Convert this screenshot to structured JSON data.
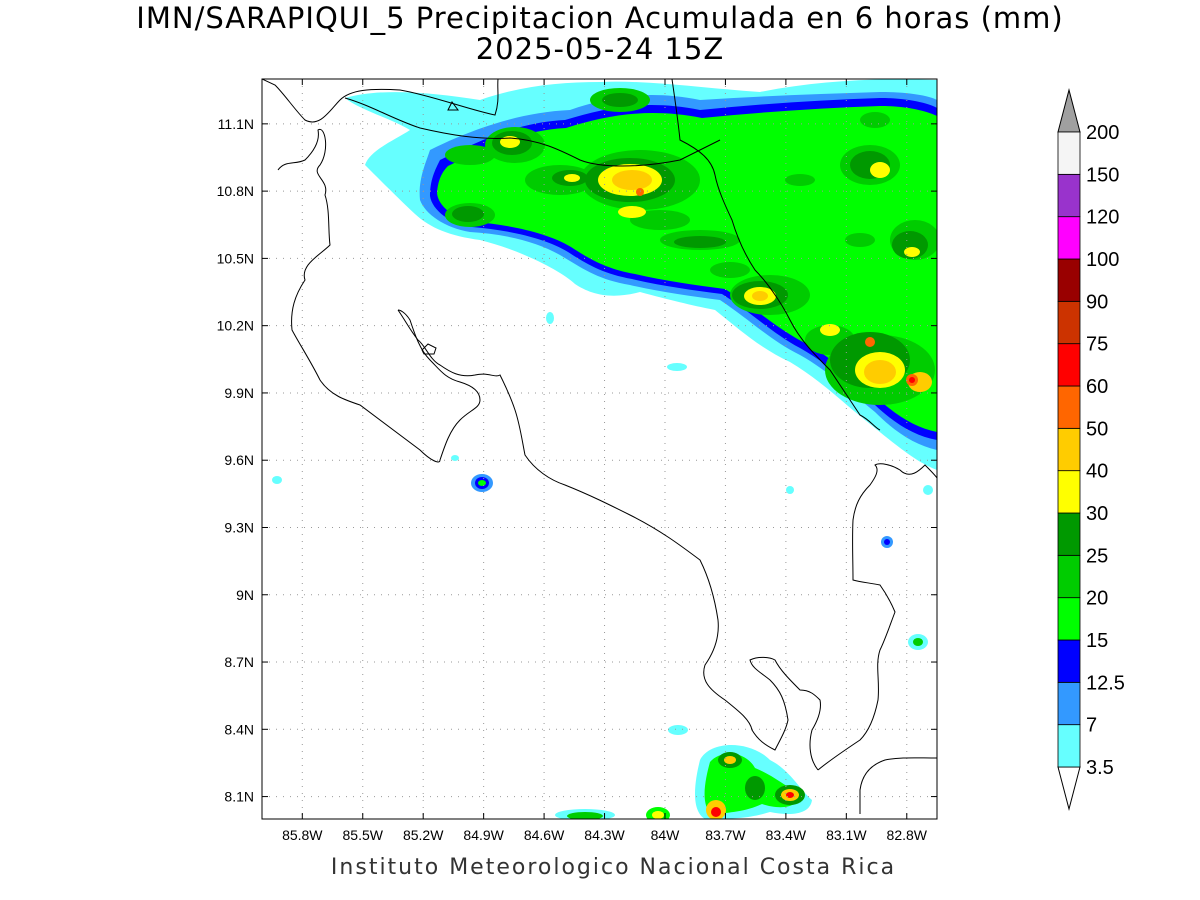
{
  "title_line1": "IMN/SARAPIQUI_5 Precipitacion Acumulada en 6 horas (mm)",
  "title_line2": "2025-05-24 15Z",
  "footer": "Instituto Meteorologico Nacional Costa Rica",
  "map": {
    "lon_range": [
      -86.0,
      -82.65
    ],
    "lat_range": [
      8.0,
      11.3
    ],
    "lon_ticks": [
      "85.8W",
      "85.5W",
      "85.2W",
      "84.9W",
      "84.6W",
      "84.3W",
      "84W",
      "83.7W",
      "83.4W",
      "83.1W",
      "82.8W"
    ],
    "lat_ticks": [
      "11.1N",
      "10.8N",
      "10.5N",
      "10.2N",
      "9.9N",
      "9.6N",
      "9.3N",
      "9N",
      "8.7N",
      "8.4N",
      "8.1N"
    ],
    "grid": true
  },
  "colorbar": {
    "labels": [
      "3.5",
      "7",
      "12.5",
      "15",
      "20",
      "25",
      "30",
      "40",
      "50",
      "60",
      "75",
      "90",
      "100",
      "120",
      "150",
      "200"
    ],
    "colors": [
      "#66ffff",
      "#3399ff",
      "#0000ff",
      "#00ff00",
      "#00cc00",
      "#009900",
      "#ffff00",
      "#ffcc00",
      "#ff6600",
      "#ff0000",
      "#cc3300",
      "#990000",
      "#ff00ff",
      "#9933cc",
      "#f5f5f5"
    ],
    "min_arrow_color": "#ffffff",
    "max_arrow_color": "#a0a0a0"
  }
}
